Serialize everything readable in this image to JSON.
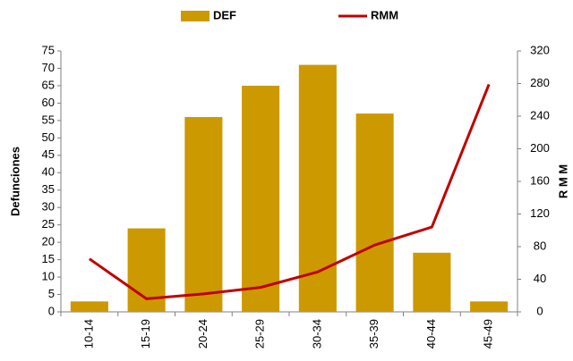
{
  "chart_data": {
    "type": "bar",
    "categories": [
      "10-14",
      "15-19",
      "20-24",
      "25-29",
      "30-34",
      "35-39",
      "40-44",
      "45-49"
    ],
    "series": [
      {
        "name": "DEF",
        "type": "bar",
        "color": "#cc9900",
        "values": [
          3,
          24,
          56,
          65,
          71,
          57,
          17,
          3
        ]
      },
      {
        "name": "RMM",
        "type": "line",
        "axis": "y2",
        "color": "#c00000",
        "values": [
          65,
          16,
          22,
          30,
          49,
          82,
          104,
          279
        ]
      }
    ],
    "y_label": "Defunciones",
    "y2_label": "R M M",
    "ylim": [
      0,
      75
    ],
    "yticks": [
      0,
      5,
      10,
      15,
      20,
      25,
      30,
      35,
      40,
      45,
      50,
      55,
      60,
      65,
      70,
      75
    ],
    "y2lim": [
      0,
      320
    ],
    "y2ticks": [
      0,
      40,
      80,
      120,
      160,
      200,
      240,
      280,
      320
    ],
    "grid": false,
    "legend": "top"
  }
}
